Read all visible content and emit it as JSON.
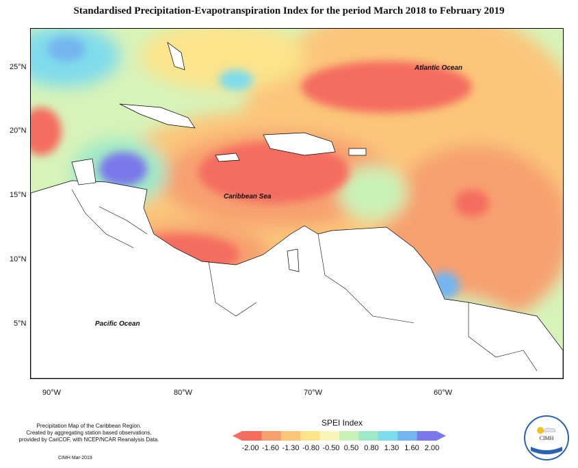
{
  "title": "Standardised Precipitation-Evapotranspiration Index for the period March 2018 to February 2019",
  "axes": {
    "y_ticks": [
      "25°N",
      "20°N",
      "15°N",
      "10°N",
      "5°N"
    ],
    "x_ticks": [
      "90°W",
      "80°W",
      "70°W",
      "60°W"
    ]
  },
  "map_labels": {
    "atlantic": "Atlantic Ocean",
    "caribbean": "Caribbean Sea",
    "pacific": "Pacific Ocean"
  },
  "legend": {
    "title": "SPEI Index",
    "values": [
      "-2.00",
      "-1.60",
      "-1.30",
      "-0.80",
      "-0.50",
      "0.50",
      "0.80",
      "1.30",
      "1.60",
      "2.00"
    ],
    "colors": [
      "#f46d5f",
      "#f7a06f",
      "#fbc67a",
      "#fbe48c",
      "#f8f5b8",
      "#c9f2b8",
      "#9fe9c8",
      "#7fdcec",
      "#74b5ef",
      "#7a78ea"
    ]
  },
  "credits": {
    "lines": [
      "Precipitation Map of the Caribbean Region.",
      "Created by aggregating station based observations,",
      "provided by CariCOF, with NCEP/NCAR Reanalysis Data."
    ],
    "date": "CIMH Mar-2019"
  },
  "logo": {
    "text": "CIMH"
  }
}
